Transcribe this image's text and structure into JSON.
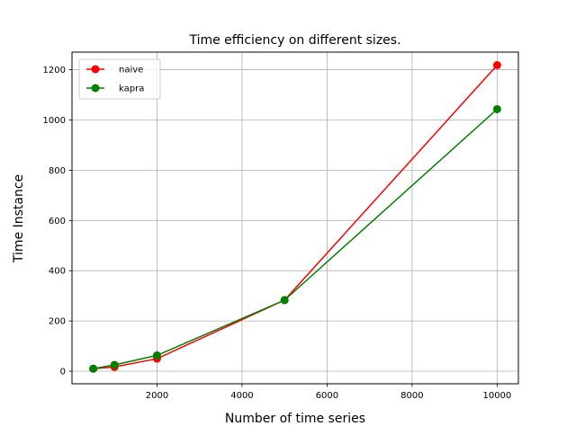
{
  "chart_data": {
    "type": "line",
    "title": "Time efficiency on different sizes.",
    "xlabel": "Number of time series",
    "ylabel": "Time Instance",
    "xlim": [
      0,
      10500
    ],
    "ylim": [
      -50,
      1270
    ],
    "xticks": [
      2000,
      4000,
      6000,
      8000,
      10000
    ],
    "yticks": [
      0,
      200,
      400,
      600,
      800,
      1000,
      1200
    ],
    "grid": true,
    "legend_position": "upper left",
    "series": [
      {
        "name": "naive",
        "color": "#ff0000",
        "x": [
          500,
          1000,
          2000,
          5000,
          10000
        ],
        "y": [
          10,
          17,
          50,
          283,
          1218
        ]
      },
      {
        "name": "kapra",
        "color": "#008000",
        "x": [
          500,
          1000,
          2000,
          5000,
          10000
        ],
        "y": [
          10,
          25,
          63,
          283,
          1043
        ]
      }
    ]
  }
}
